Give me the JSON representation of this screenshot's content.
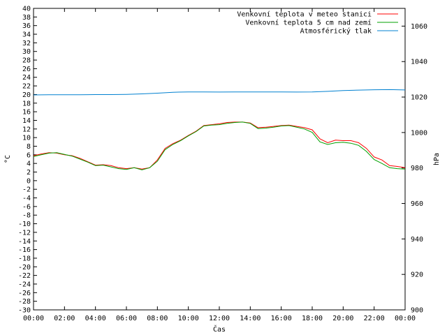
{
  "chart_data": {
    "type": "line",
    "title": "",
    "xlabel": "Čas",
    "ylabel": "°C",
    "y2label": "hPa",
    "xlim": [
      0,
      24
    ],
    "x_tick_labels": [
      "00:00",
      "02:00",
      "04:00",
      "06:00",
      "08:00",
      "10:00",
      "12:00",
      "14:00",
      "16:00",
      "18:00",
      "20:00",
      "22:00",
      "00:00"
    ],
    "ylim": [
      -30,
      40
    ],
    "y_ticks": [
      40,
      38,
      36,
      34,
      32,
      30,
      28,
      26,
      24,
      22,
      20,
      18,
      16,
      14,
      12,
      10,
      8,
      6,
      4,
      2,
      0,
      -2,
      -4,
      -6,
      -8,
      -10,
      -12,
      -14,
      -16,
      -18,
      -20,
      -22,
      -24,
      -26,
      -28,
      -30
    ],
    "y2lim": [
      900,
      1070
    ],
    "y2_ticks": [
      1060,
      1040,
      1020,
      1000,
      980,
      960,
      940,
      920,
      900
    ],
    "grid": false,
    "legend_position": "top-right",
    "series": [
      {
        "name": "Venkovní teplota v meteo stanici",
        "axis": "left",
        "color": "#ff0000",
        "x": [
          0,
          0.5,
          1,
          1.5,
          2,
          2.5,
          3,
          3.5,
          4,
          4.5,
          5,
          5.5,
          6,
          6.5,
          7,
          7.5,
          8,
          8.5,
          9,
          9.5,
          10,
          10.5,
          11,
          11.5,
          12,
          12.5,
          13,
          13.5,
          14,
          14.5,
          15,
          15.5,
          16,
          16.5,
          17,
          17.5,
          18,
          18.5,
          19,
          19.5,
          20,
          20.5,
          21,
          21.5,
          22,
          22.5,
          23,
          23.5,
          24
        ],
        "values": [
          5.8,
          6.2,
          6.5,
          6.4,
          6.0,
          5.8,
          5.2,
          4.4,
          3.6,
          3.7,
          3.5,
          3.0,
          2.8,
          3.0,
          2.7,
          3.0,
          4.8,
          7.5,
          8.6,
          9.4,
          10.5,
          11.5,
          12.8,
          13.0,
          13.2,
          13.5,
          13.6,
          13.6,
          13.4,
          12.3,
          12.4,
          12.6,
          12.8,
          12.9,
          12.6,
          12.3,
          11.8,
          9.7,
          8.8,
          9.4,
          9.3,
          9.3,
          8.8,
          7.5,
          5.5,
          4.8,
          3.5,
          3.3,
          3.0
        ]
      },
      {
        "name": "Venkovní teplota 5 cm nad zemí",
        "axis": "left",
        "color": "#00a000",
        "x": [
          0,
          0.5,
          1,
          1.5,
          2,
          2.5,
          3,
          3.5,
          4,
          4.5,
          5,
          5.5,
          6,
          6.5,
          7,
          7.5,
          8,
          8.5,
          9,
          9.5,
          10,
          10.5,
          11,
          11.5,
          12,
          12.5,
          13,
          13.5,
          14,
          14.5,
          15,
          15.5,
          16,
          16.5,
          17,
          17.5,
          18,
          18.5,
          19,
          19.5,
          20,
          20.5,
          21,
          21.5,
          22,
          22.5,
          23,
          23.5,
          24
        ],
        "values": [
          5.6,
          6.0,
          6.4,
          6.5,
          6.1,
          5.7,
          5.0,
          4.3,
          3.5,
          3.6,
          3.2,
          2.8,
          2.6,
          3.0,
          2.5,
          3.0,
          4.5,
          7.2,
          8.4,
          9.3,
          10.4,
          11.4,
          12.7,
          12.9,
          13.0,
          13.3,
          13.5,
          13.6,
          13.3,
          12.1,
          12.2,
          12.4,
          12.7,
          12.8,
          12.4,
          12.0,
          11.2,
          9.0,
          8.4,
          8.8,
          8.9,
          8.7,
          8.2,
          6.8,
          4.9,
          4.0,
          3.0,
          2.8,
          2.7
        ]
      },
      {
        "name": "Atmosférický tlak",
        "axis": "right",
        "color": "#0080d0",
        "x": [
          0,
          1,
          2,
          3,
          4,
          5,
          6,
          7,
          8,
          9,
          10,
          11,
          12,
          13,
          14,
          15,
          16,
          17,
          18,
          19,
          20,
          21,
          22,
          23,
          24
        ],
        "values": [
          1021.2,
          1021.3,
          1021.3,
          1021.3,
          1021.4,
          1021.4,
          1021.5,
          1021.8,
          1022.2,
          1022.7,
          1022.9,
          1022.9,
          1022.8,
          1022.9,
          1022.9,
          1022.9,
          1022.9,
          1022.8,
          1022.9,
          1023.2,
          1023.7,
          1023.9,
          1024.1,
          1024.2,
          1024.0
        ]
      }
    ]
  }
}
